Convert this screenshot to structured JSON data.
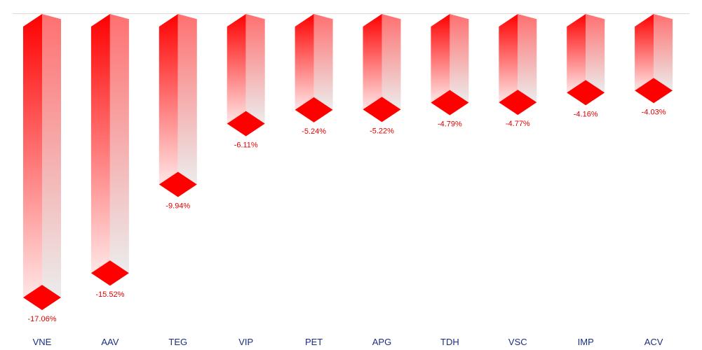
{
  "colors": {
    "bar_top": "#ff0000",
    "bar_bottom": "#ffe6e6",
    "side_top": "#ff7070",
    "side_bottom": "#ececec",
    "label": "#e00000",
    "tick": "#1a2d80",
    "zero_line": "#d9d9d9"
  },
  "chart_data": {
    "type": "bar",
    "title": "",
    "xlabel": "",
    "ylabel": "",
    "categories": [
      "VNE",
      "AAV",
      "TEG",
      "VIP",
      "PET",
      "APG",
      "TDH",
      "VSC",
      "IMP",
      "ACV"
    ],
    "values": [
      -17.06,
      -15.52,
      -9.94,
      -6.11,
      -5.24,
      -5.22,
      -4.79,
      -4.77,
      -4.16,
      -4.03
    ],
    "value_labels": [
      "-17.06%",
      "-15.52%",
      "-9.94%",
      "-6.11%",
      "-5.24%",
      "-5.22%",
      "-4.79%",
      "-4.77%",
      "-4.16%",
      "-4.03%"
    ],
    "ylim": [
      -17.06,
      0
    ],
    "grid": false,
    "legend": "none"
  }
}
